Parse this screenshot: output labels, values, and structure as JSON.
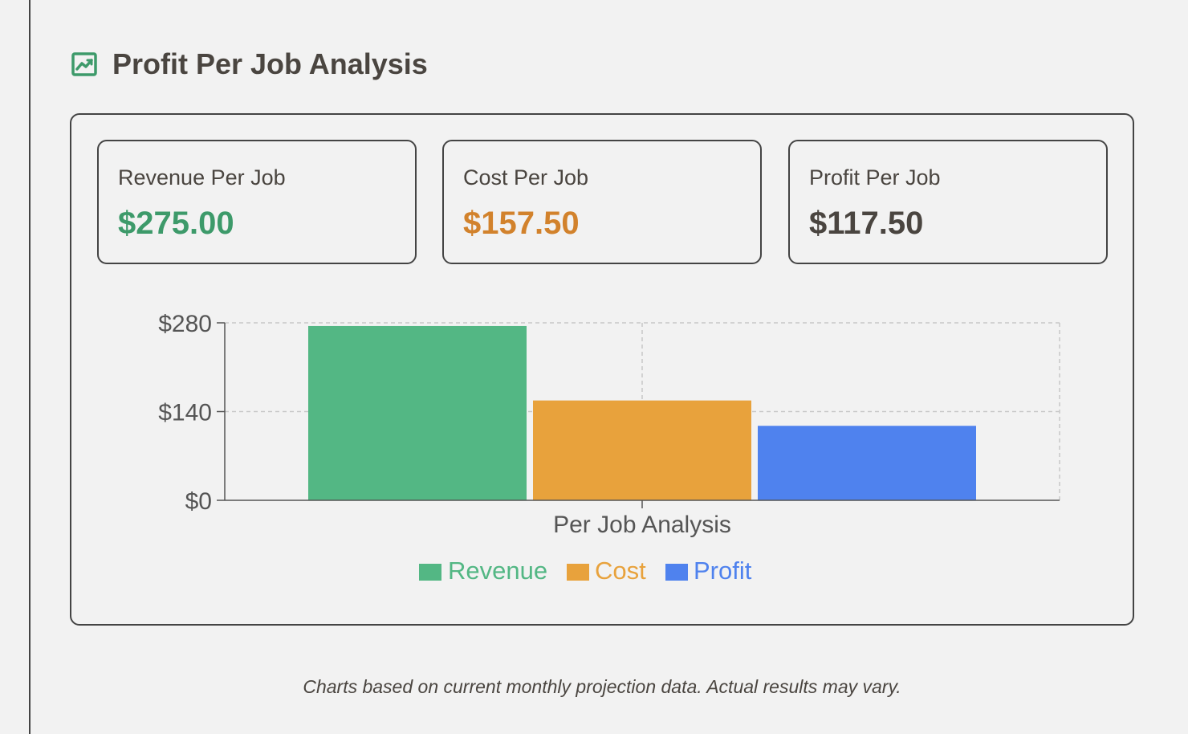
{
  "section": {
    "title": "Profit Per Job Analysis"
  },
  "metrics": [
    {
      "label": "Revenue Per Job",
      "value": "$275.00",
      "color": "#3d9a6a"
    },
    {
      "label": "Cost Per Job",
      "value": "$157.50",
      "color": "#d2822c"
    },
    {
      "label": "Profit Per Job",
      "value": "$117.50",
      "color": "#4a4540"
    }
  ],
  "chart_data": {
    "type": "bar",
    "categories": [
      "Per Job Analysis"
    ],
    "series": [
      {
        "name": "Revenue",
        "values": [
          275
        ],
        "color": "#53b784"
      },
      {
        "name": "Cost",
        "values": [
          157.5
        ],
        "color": "#e8a23c"
      },
      {
        "name": "Profit",
        "values": [
          117.5
        ],
        "color": "#4f82ee"
      }
    ],
    "y_ticks": [
      "$0",
      "$140",
      "$280"
    ],
    "ylim": [
      0,
      280
    ],
    "grid": true,
    "legend": "bottom"
  },
  "footnote": "Charts based on current monthly projection data. Actual results may vary."
}
